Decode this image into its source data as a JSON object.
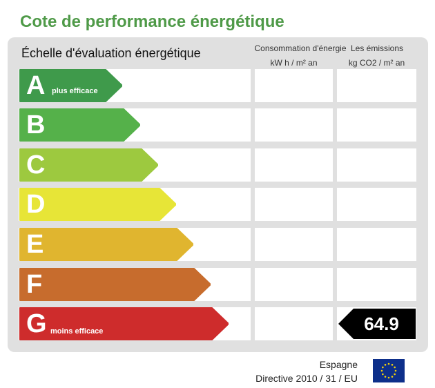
{
  "title": "Cote de performance énergétique",
  "scale_label": "Échelle d'évaluation énergétique",
  "columns": {
    "consumption_title": "Consommation d'énergie",
    "consumption_unit": "kW h / m² an",
    "emissions_title": "Les émissions",
    "emissions_unit": "kg CO2 / m² an"
  },
  "ratings": [
    {
      "letter": "A",
      "note": "plus efficace",
      "color": "#3f9a4b"
    },
    {
      "letter": "B",
      "note": "",
      "color": "#55b14a"
    },
    {
      "letter": "C",
      "note": "",
      "color": "#9dc93f"
    },
    {
      "letter": "D",
      "note": "",
      "color": "#e7e537"
    },
    {
      "letter": "E",
      "note": "",
      "color": "#e0b52f"
    },
    {
      "letter": "F",
      "note": "",
      "color": "#c76c2d"
    },
    {
      "letter": "G",
      "note": "moins efficace",
      "color": "#ce2c2c"
    }
  ],
  "values": {
    "emissions_rating": "G",
    "emissions_value": "64.9"
  },
  "footer": {
    "country": "Espagne",
    "directive": "Directive 2010 / 31 / EU"
  },
  "colors": {
    "title": "#4f9a48",
    "panel": "#e0e0e0",
    "value_marker": "#000000",
    "flag_blue": "#0d2f8a",
    "flag_stars": "#f4d30b"
  }
}
